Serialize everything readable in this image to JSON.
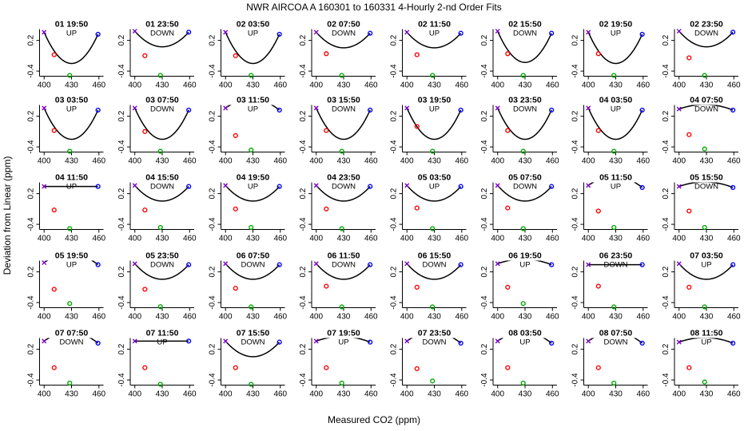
{
  "title": "NWR   AIRCOA A   160301 to 160331   4-Hourly 2-nd Order Fits",
  "xlabel": "Measured CO2 (ppm)",
  "ylabel": "Deviation from Linear (ppm)",
  "colors": {
    "curve": "#000000",
    "high": "#0000ff",
    "mid": "#ff0000",
    "low": "#00aa00",
    "ref": "#7b00c8"
  },
  "chart_data": {
    "type": "scatter",
    "layout": "5x8 small multiples",
    "xlim": [
      395,
      465
    ],
    "ylim": [
      -0.5,
      0.42
    ],
    "x_ticks": [
      400,
      430,
      460
    ],
    "y_ticks": [
      0.2,
      -0.4
    ],
    "fit": "2nd order polynomial",
    "standards_x": [
      400,
      411,
      428,
      459
    ],
    "panels": [
      {
        "label": "01 19:50",
        "dir": "UP",
        "min_x": 430,
        "points": [
          0.36,
          -0.08,
          -0.5,
          0.32
        ]
      },
      {
        "label": "01 23:50",
        "dir": "DOWN",
        "min_x": 430,
        "points": [
          0.38,
          -0.1,
          -0.52,
          0.36
        ]
      },
      {
        "label": "02 03:50",
        "dir": "UP",
        "min_x": 430,
        "points": [
          0.36,
          -0.1,
          -0.52,
          0.32
        ]
      },
      {
        "label": "02 07:50",
        "dir": "DOWN",
        "min_x": 430,
        "points": [
          0.36,
          -0.06,
          -0.5,
          0.34
        ]
      },
      {
        "label": "02 11:50",
        "dir": "UP",
        "min_x": 430,
        "points": [
          0.36,
          -0.08,
          -0.52,
          0.34
        ]
      },
      {
        "label": "02 15:50",
        "dir": "DOWN",
        "min_x": 430,
        "points": [
          0.38,
          -0.06,
          -0.52,
          0.34
        ]
      },
      {
        "label": "02 19:50",
        "dir": "UP",
        "min_x": 430,
        "points": [
          0.36,
          -0.06,
          -0.52,
          0.32
        ]
      },
      {
        "label": "02 23:50",
        "dir": "DOWN",
        "min_x": 430,
        "points": [
          0.38,
          -0.14,
          -0.5,
          0.36
        ]
      },
      {
        "label": "03 03:50",
        "dir": "UP",
        "min_x": 430,
        "points": [
          0.36,
          -0.08,
          -0.5,
          0.32
        ]
      },
      {
        "label": "03 07:50",
        "dir": "DOWN",
        "min_x": 430,
        "points": [
          0.36,
          -0.1,
          -0.52,
          0.32
        ]
      },
      {
        "label": "03 11:50",
        "dir": "UP",
        "min_x": 428,
        "points": [
          0.36,
          -0.18,
          -0.46,
          0.32
        ]
      },
      {
        "label": "03 15:50",
        "dir": "DOWN",
        "min_x": 430,
        "points": [
          0.36,
          -0.08,
          -0.52,
          0.32
        ]
      },
      {
        "label": "03 19:50",
        "dir": "UP",
        "min_x": 430,
        "points": [
          0.36,
          0.0,
          -0.52,
          0.32
        ]
      },
      {
        "label": "03 23:50",
        "dir": "DOWN",
        "min_x": 430,
        "points": [
          0.36,
          -0.08,
          -0.5,
          0.32
        ]
      },
      {
        "label": "04 03:50",
        "dir": "UP",
        "min_x": 430,
        "points": [
          0.36,
          -0.08,
          -0.52,
          0.32
        ]
      },
      {
        "label": "04 07:50",
        "dir": "DOWN",
        "min_x": 428,
        "points": [
          0.34,
          -0.16,
          -0.44,
          0.32
        ]
      },
      {
        "label": "04 11:50",
        "dir": "UP",
        "min_x": 430,
        "points": [
          0.34,
          -0.12,
          -0.5,
          0.34
        ]
      },
      {
        "label": "04 15:50",
        "dir": "DOWN",
        "min_x": 430,
        "points": [
          0.36,
          -0.12,
          -0.46,
          0.34
        ]
      },
      {
        "label": "04 19:50",
        "dir": "UP",
        "min_x": 430,
        "points": [
          0.36,
          -0.1,
          -0.46,
          0.34
        ]
      },
      {
        "label": "04 23:50",
        "dir": "DOWN",
        "min_x": 430,
        "points": [
          0.36,
          -0.1,
          -0.5,
          0.34
        ]
      },
      {
        "label": "05 03:50",
        "dir": "UP",
        "min_x": 430,
        "points": [
          0.36,
          -0.08,
          -0.5,
          0.34
        ]
      },
      {
        "label": "05 07:50",
        "dir": "DOWN",
        "min_x": 430,
        "points": [
          0.36,
          -0.08,
          -0.52,
          0.34
        ]
      },
      {
        "label": "05 11:50",
        "dir": "UP",
        "min_x": 428,
        "points": [
          0.36,
          -0.14,
          -0.46,
          0.32
        ]
      },
      {
        "label": "05 15:50",
        "dir": "DOWN",
        "min_x": 428,
        "points": [
          0.34,
          -0.14,
          -0.46,
          0.32
        ]
      },
      {
        "label": "05 19:50",
        "dir": "UP",
        "min_x": 428,
        "points": [
          0.38,
          -0.14,
          -0.42,
          0.34
        ]
      },
      {
        "label": "05 23:50",
        "dir": "DOWN",
        "min_x": 430,
        "points": [
          0.36,
          -0.14,
          -0.48,
          0.34
        ]
      },
      {
        "label": "06 07:50",
        "dir": "DOWN",
        "min_x": 430,
        "points": [
          0.36,
          -0.12,
          -0.5,
          0.34
        ]
      },
      {
        "label": "06 11:50",
        "dir": "DOWN",
        "min_x": 430,
        "points": [
          0.36,
          -0.08,
          -0.52,
          0.34
        ]
      },
      {
        "label": "06 15:50",
        "dir": "DOWN",
        "min_x": 430,
        "points": [
          0.36,
          -0.1,
          -0.52,
          0.34
        ]
      },
      {
        "label": "06 19:50",
        "dir": "UP",
        "min_x": 428,
        "points": [
          0.36,
          -0.1,
          -0.42,
          0.34
        ]
      },
      {
        "label": "06 23:50",
        "dir": "DOWN",
        "min_x": 430,
        "points": [
          0.34,
          -0.08,
          -0.52,
          0.34
        ]
      },
      {
        "label": "07 03:50",
        "dir": "UP",
        "min_x": 430,
        "points": [
          0.36,
          -0.1,
          -0.5,
          0.34
        ]
      },
      {
        "label": "07 07:50",
        "dir": "DOWN",
        "min_x": 428,
        "points": [
          0.36,
          -0.16,
          -0.46,
          0.32
        ]
      },
      {
        "label": "07 11:50",
        "dir": "UP",
        "min_x": 430,
        "points": [
          0.36,
          -0.16,
          -0.5,
          0.36
        ]
      },
      {
        "label": "07 15:50",
        "dir": "DOWN",
        "min_x": 430,
        "points": [
          0.36,
          -0.16,
          -0.5,
          0.34
        ]
      },
      {
        "label": "07 19:50",
        "dir": "UP",
        "min_x": 428,
        "points": [
          0.36,
          -0.16,
          -0.46,
          0.34
        ]
      },
      {
        "label": "07 23:50",
        "dir": "DOWN",
        "min_x": 428,
        "points": [
          0.36,
          -0.18,
          -0.42,
          0.32
        ]
      },
      {
        "label": "08 03:50",
        "dir": "UP",
        "min_x": 428,
        "points": [
          0.36,
          -0.16,
          -0.46,
          0.32
        ]
      },
      {
        "label": "08 07:50",
        "dir": "DOWN",
        "min_x": 428,
        "points": [
          0.36,
          -0.16,
          -0.46,
          0.32
        ]
      },
      {
        "label": "08 11:50",
        "dir": "UP",
        "min_x": 428,
        "points": [
          0.34,
          -0.16,
          -0.44,
          0.32
        ]
      }
    ]
  }
}
